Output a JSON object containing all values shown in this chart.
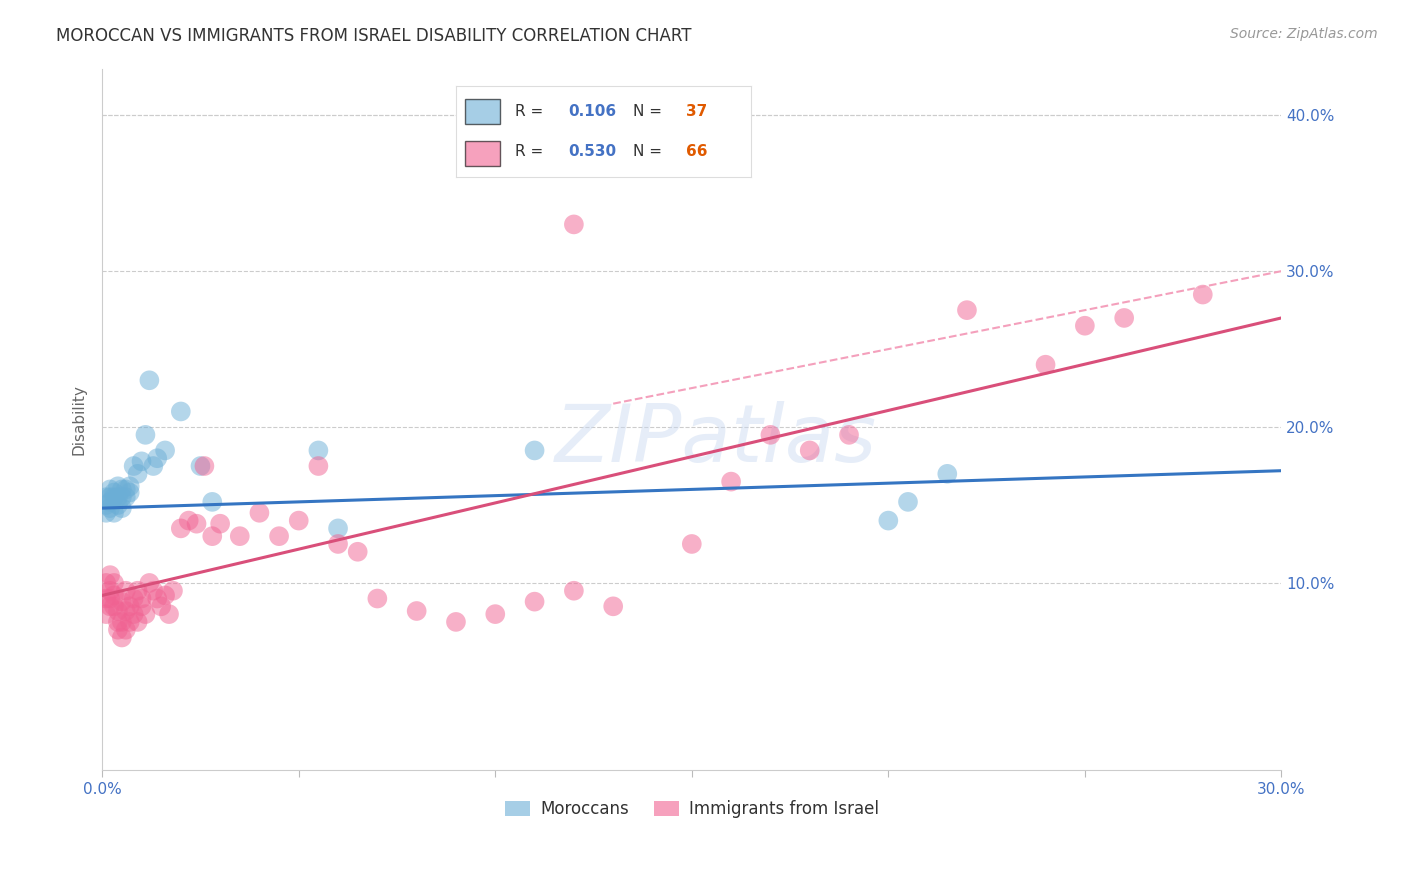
{
  "title": "MOROCCAN VS IMMIGRANTS FROM ISRAEL DISABILITY CORRELATION CHART",
  "source": "Source: ZipAtlas.com",
  "ylabel": "Disability",
  "watermark": "ZIPatlas",
  "xlim": [
    0.0,
    0.3
  ],
  "ylim": [
    -0.02,
    0.43
  ],
  "xticks": [
    0.0,
    0.05,
    0.1,
    0.15,
    0.2,
    0.25,
    0.3
  ],
  "yticks": [
    0.1,
    0.2,
    0.3,
    0.4
  ],
  "ytick_labels": [
    "10.0%",
    "20.0%",
    "30.0%",
    "40.0%"
  ],
  "xtick_labels_show": [
    "0.0%",
    "30.0%"
  ],
  "blue_color": "#6baed6",
  "pink_color": "#f06292",
  "blue_line_color": "#3575c2",
  "pink_line_color": "#d94f7a",
  "pink_dashed_color": "#f4a0bc",
  "tick_label_color": "#4472c4",
  "moroccans_x": [
    0.001,
    0.001,
    0.001,
    0.002,
    0.002,
    0.002,
    0.002,
    0.003,
    0.003,
    0.003,
    0.004,
    0.004,
    0.004,
    0.005,
    0.005,
    0.005,
    0.006,
    0.006,
    0.007,
    0.007,
    0.008,
    0.009,
    0.01,
    0.011,
    0.012,
    0.013,
    0.014,
    0.016,
    0.02,
    0.025,
    0.028,
    0.055,
    0.06,
    0.11,
    0.2,
    0.205,
    0.215
  ],
  "moroccans_y": [
    0.15,
    0.155,
    0.145,
    0.148,
    0.152,
    0.155,
    0.16,
    0.145,
    0.158,
    0.155,
    0.15,
    0.162,
    0.155,
    0.155,
    0.148,
    0.16,
    0.155,
    0.16,
    0.162,
    0.158,
    0.175,
    0.17,
    0.178,
    0.195,
    0.23,
    0.175,
    0.18,
    0.185,
    0.21,
    0.175,
    0.152,
    0.185,
    0.135,
    0.185,
    0.14,
    0.152,
    0.17
  ],
  "israel_x": [
    0.001,
    0.001,
    0.001,
    0.002,
    0.002,
    0.002,
    0.002,
    0.003,
    0.003,
    0.003,
    0.004,
    0.004,
    0.004,
    0.005,
    0.005,
    0.005,
    0.006,
    0.006,
    0.006,
    0.007,
    0.007,
    0.008,
    0.008,
    0.009,
    0.009,
    0.01,
    0.01,
    0.011,
    0.012,
    0.013,
    0.014,
    0.015,
    0.016,
    0.017,
    0.018,
    0.02,
    0.022,
    0.024,
    0.026,
    0.028,
    0.03,
    0.035,
    0.04,
    0.045,
    0.05,
    0.055,
    0.06,
    0.065,
    0.07,
    0.08,
    0.09,
    0.1,
    0.11,
    0.12,
    0.13,
    0.15,
    0.16,
    0.17,
    0.18,
    0.19,
    0.22,
    0.24,
    0.25,
    0.26,
    0.28,
    0.12
  ],
  "israel_y": [
    0.09,
    0.1,
    0.08,
    0.095,
    0.085,
    0.105,
    0.09,
    0.1,
    0.085,
    0.092,
    0.075,
    0.082,
    0.07,
    0.088,
    0.075,
    0.065,
    0.082,
    0.095,
    0.07,
    0.085,
    0.075,
    0.09,
    0.08,
    0.095,
    0.075,
    0.09,
    0.085,
    0.08,
    0.1,
    0.095,
    0.09,
    0.085,
    0.092,
    0.08,
    0.095,
    0.135,
    0.14,
    0.138,
    0.175,
    0.13,
    0.138,
    0.13,
    0.145,
    0.13,
    0.14,
    0.175,
    0.125,
    0.12,
    0.09,
    0.082,
    0.075,
    0.08,
    0.088,
    0.095,
    0.085,
    0.125,
    0.165,
    0.195,
    0.185,
    0.195,
    0.275,
    0.24,
    0.265,
    0.27,
    0.285,
    0.33
  ]
}
